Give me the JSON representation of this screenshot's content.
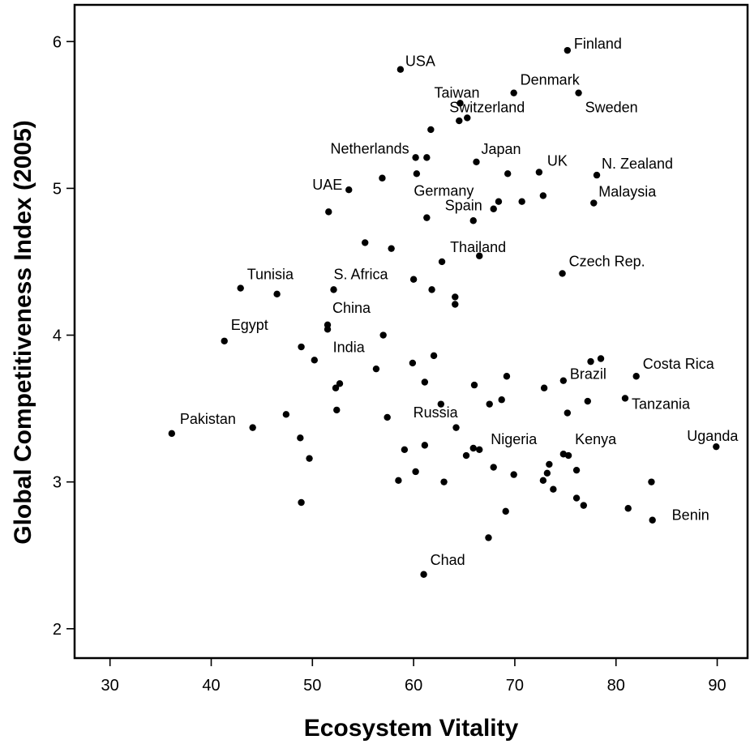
{
  "chart_data": {
    "type": "scatter",
    "title": "",
    "xlabel": "Ecosystem Vitality",
    "ylabel": "Global Competitiveness Index (2005)",
    "xlim": [
      26.5,
      93
    ],
    "ylim": [
      1.8,
      6.25
    ],
    "xticks": [
      30,
      40,
      50,
      60,
      70,
      80,
      90
    ],
    "yticks": [
      2,
      3,
      4,
      5,
      6
    ],
    "grid": false,
    "legend": "none",
    "point_color": "#000000",
    "labeled_points": [
      {
        "label": "Finland",
        "x": 75.2,
        "y": 5.94
      },
      {
        "label": "USA",
        "x": 58.7,
        "y": 5.81
      },
      {
        "label": "Denmark",
        "x": 69.9,
        "y": 5.65
      },
      {
        "label": "Sweden",
        "x": 76.3,
        "y": 5.65
      },
      {
        "label": "Taiwan",
        "x": 64.6,
        "y": 5.58
      },
      {
        "label": "Switzerland",
        "x": 65.3,
        "y": 5.48
      },
      {
        "label": "Netherlands",
        "x": 60.2,
        "y": 5.21
      },
      {
        "label": "Japan",
        "x": 66.2,
        "y": 5.18
      },
      {
        "label": "UK",
        "x": 72.4,
        "y": 5.11
      },
      {
        "label": "N. Zealand",
        "x": 78.1,
        "y": 5.09
      },
      {
        "label": "UAE",
        "x": 53.6,
        "y": 4.99
      },
      {
        "label": "Germany",
        "x": 61.3,
        "y": 4.8
      },
      {
        "label": "Spain",
        "x": 65.9,
        "y": 4.78
      },
      {
        "label": "Malaysia",
        "x": 77.8,
        "y": 4.9
      },
      {
        "label": "Thailand",
        "x": 62.8,
        "y": 4.5
      },
      {
        "label": "Czech Rep.",
        "x": 74.7,
        "y": 4.42
      },
      {
        "label": "Tunisia",
        "x": 42.9,
        "y": 4.32
      },
      {
        "label": "S. Africa",
        "x": 52.1,
        "y": 4.31
      },
      {
        "label": "China",
        "x": 51.5,
        "y": 4.07
      },
      {
        "label": "Egypt",
        "x": 41.3,
        "y": 3.96
      },
      {
        "label": "India",
        "x": 57.0,
        "y": 4.0
      },
      {
        "label": "Costa Rica",
        "x": 82.0,
        "y": 3.72
      },
      {
        "label": "Brazil",
        "x": 74.8,
        "y": 3.69
      },
      {
        "label": "Tanzania",
        "x": 80.9,
        "y": 3.57
      },
      {
        "label": "Pakistan",
        "x": 36.1,
        "y": 3.33
      },
      {
        "label": "Russia",
        "x": 57.4,
        "y": 3.44
      },
      {
        "label": "Uganda",
        "x": 89.9,
        "y": 3.24
      },
      {
        "label": "Nigeria",
        "x": 66.5,
        "y": 3.22
      },
      {
        "label": "Kenya",
        "x": 75.3,
        "y": 3.18
      },
      {
        "label": "Benin",
        "x": 83.6,
        "y": 2.74
      },
      {
        "label": "Chad",
        "x": 61.0,
        "y": 2.37
      }
    ],
    "unlabeled_points": [
      {
        "x": 64.5,
        "y": 5.46
      },
      {
        "x": 61.7,
        "y": 5.4
      },
      {
        "x": 61.3,
        "y": 5.21
      },
      {
        "x": 69.3,
        "y": 5.1
      },
      {
        "x": 56.9,
        "y": 5.07
      },
      {
        "x": 60.3,
        "y": 5.1
      },
      {
        "x": 72.8,
        "y": 4.95
      },
      {
        "x": 68.4,
        "y": 4.91
      },
      {
        "x": 70.7,
        "y": 4.91
      },
      {
        "x": 67.9,
        "y": 4.86
      },
      {
        "x": 51.6,
        "y": 4.84
      },
      {
        "x": 55.2,
        "y": 4.63
      },
      {
        "x": 57.8,
        "y": 4.59
      },
      {
        "x": 66.5,
        "y": 4.54
      },
      {
        "x": 46.5,
        "y": 4.28
      },
      {
        "x": 60.0,
        "y": 4.38
      },
      {
        "x": 61.8,
        "y": 4.31
      },
      {
        "x": 64.1,
        "y": 4.26
      },
      {
        "x": 64.1,
        "y": 4.21
      },
      {
        "x": 51.5,
        "y": 4.04
      },
      {
        "x": 48.9,
        "y": 3.92
      },
      {
        "x": 50.2,
        "y": 3.83
      },
      {
        "x": 59.9,
        "y": 3.81
      },
      {
        "x": 62.0,
        "y": 3.86
      },
      {
        "x": 56.3,
        "y": 3.77
      },
      {
        "x": 61.1,
        "y": 3.68
      },
      {
        "x": 52.7,
        "y": 3.67
      },
      {
        "x": 52.3,
        "y": 3.64
      },
      {
        "x": 66.0,
        "y": 3.66
      },
      {
        "x": 69.2,
        "y": 3.72
      },
      {
        "x": 72.9,
        "y": 3.64
      },
      {
        "x": 77.5,
        "y": 3.82
      },
      {
        "x": 78.5,
        "y": 3.84
      },
      {
        "x": 62.7,
        "y": 3.53
      },
      {
        "x": 67.5,
        "y": 3.53
      },
      {
        "x": 68.7,
        "y": 3.56
      },
      {
        "x": 77.2,
        "y": 3.55
      },
      {
        "x": 52.4,
        "y": 3.49
      },
      {
        "x": 75.2,
        "y": 3.47
      },
      {
        "x": 44.1,
        "y": 3.37
      },
      {
        "x": 47.4,
        "y": 3.46
      },
      {
        "x": 48.8,
        "y": 3.3
      },
      {
        "x": 64.2,
        "y": 3.37
      },
      {
        "x": 49.7,
        "y": 3.16
      },
      {
        "x": 59.1,
        "y": 3.22
      },
      {
        "x": 61.1,
        "y": 3.25
      },
      {
        "x": 65.2,
        "y": 3.18
      },
      {
        "x": 65.9,
        "y": 3.23
      },
      {
        "x": 67.9,
        "y": 3.1
      },
      {
        "x": 73.4,
        "y": 3.12
      },
      {
        "x": 74.8,
        "y": 3.19
      },
      {
        "x": 76.1,
        "y": 3.08
      },
      {
        "x": 60.2,
        "y": 3.07
      },
      {
        "x": 69.9,
        "y": 3.05
      },
      {
        "x": 73.2,
        "y": 3.06
      },
      {
        "x": 72.8,
        "y": 3.01
      },
      {
        "x": 58.5,
        "y": 3.01
      },
      {
        "x": 63.0,
        "y": 3.0
      },
      {
        "x": 83.5,
        "y": 3.0
      },
      {
        "x": 73.8,
        "y": 2.95
      },
      {
        "x": 76.1,
        "y": 2.89
      },
      {
        "x": 76.8,
        "y": 2.84
      },
      {
        "x": 81.2,
        "y": 2.82
      },
      {
        "x": 48.9,
        "y": 2.86
      },
      {
        "x": 69.1,
        "y": 2.8
      },
      {
        "x": 67.4,
        "y": 2.62
      }
    ]
  }
}
